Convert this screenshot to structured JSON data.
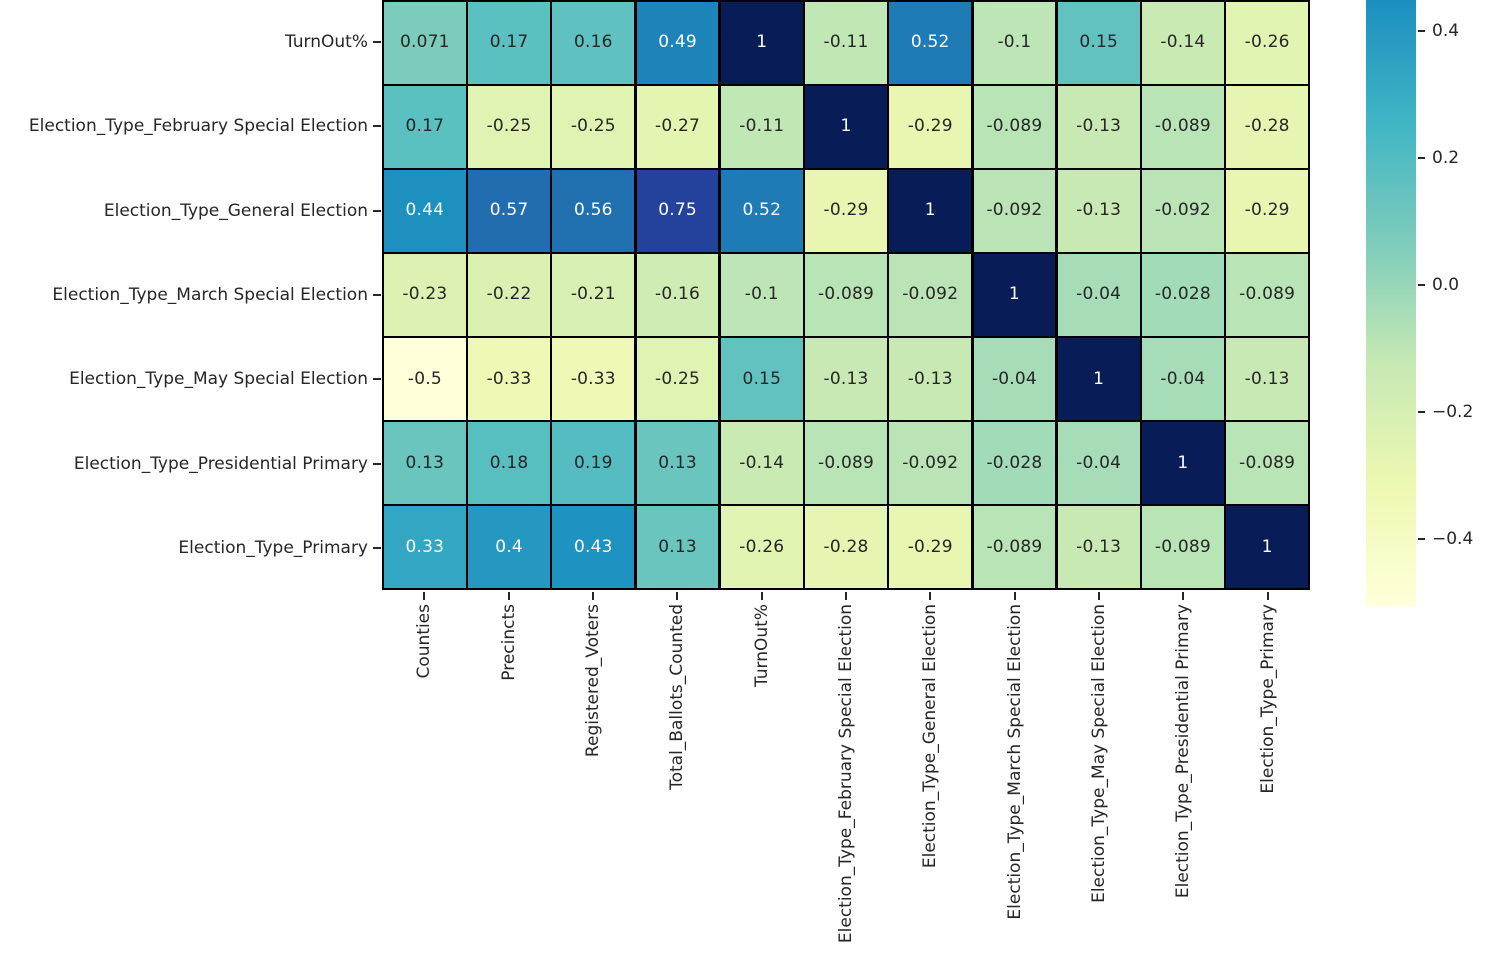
{
  "chart_data": {
    "type": "heatmap",
    "title": "",
    "colormap": "YlGnBu",
    "vmin": -0.5,
    "vmax": 1.0,
    "x_labels": [
      "Counties",
      "Precincts",
      "Registered_Voters",
      "Total_Ballots_Counted",
      "TurnOut%",
      "Election_Type_February Special Election",
      "Election_Type_General Election",
      "Election_Type_March Special Election",
      "Election_Type_May Special Election",
      "Election_Type_Presidential Primary",
      "Election_Type_Primary"
    ],
    "y_labels": [
      "TurnOut%",
      "Election_Type_February Special Election",
      "Election_Type_General Election",
      "Election_Type_March Special Election",
      "Election_Type_May Special Election",
      "Election_Type_Presidential Primary",
      "Election_Type_Primary"
    ],
    "cell_values": [
      [
        "0.071",
        "0.17",
        "0.16",
        "0.49",
        "1",
        "-0.11",
        "0.52",
        "-0.1",
        "0.15",
        "-0.14",
        "-0.26"
      ],
      [
        "0.17",
        "-0.25",
        "-0.25",
        "-0.27",
        "-0.11",
        "1",
        "-0.29",
        "-0.089",
        "-0.13",
        "-0.089",
        "-0.28"
      ],
      [
        "0.44",
        "0.57",
        "0.56",
        "0.75",
        "0.52",
        "-0.29",
        "1",
        "-0.092",
        "-0.13",
        "-0.092",
        "-0.29"
      ],
      [
        "-0.23",
        "-0.22",
        "-0.21",
        "-0.16",
        "-0.1",
        "-0.089",
        "-0.092",
        "1",
        "-0.04",
        "-0.028",
        "-0.089"
      ],
      [
        "-0.5",
        "-0.33",
        "-0.33",
        "-0.25",
        "0.15",
        "-0.13",
        "-0.13",
        "-0.04",
        "1",
        "-0.04",
        "-0.13"
      ],
      [
        "0.13",
        "0.18",
        "0.19",
        "0.13",
        "-0.14",
        "-0.089",
        "-0.092",
        "-0.028",
        "-0.04",
        "1",
        "-0.089"
      ],
      [
        "0.33",
        "0.4",
        "0.43",
        "0.13",
        "-0.26",
        "-0.28",
        "-0.29",
        "-0.089",
        "-0.13",
        "-0.089",
        "1"
      ]
    ],
    "colorbar": {
      "position": "right",
      "tick_labels": [
        "0.4",
        "0.2",
        "0.0",
        "−0.2",
        "−0.4"
      ],
      "tick_values": [
        0.4,
        0.2,
        0.0,
        -0.2,
        -0.4
      ],
      "visible_top_value": 0.449,
      "visible_bottom_value": -0.5
    },
    "colors": {
      "grid_line": "#000000",
      "background": "#ffffff",
      "annotation_dark_text": "#262626",
      "annotation_light_text": "#ffffff",
      "tick_label_text": "#262626",
      "colormap_stops": [
        "#ffffd9",
        "#edf8b1",
        "#c7e9b4",
        "#7fcdbb",
        "#41b6c4",
        "#1d91c0",
        "#225ea8",
        "#253494",
        "#081d58"
      ]
    }
  }
}
